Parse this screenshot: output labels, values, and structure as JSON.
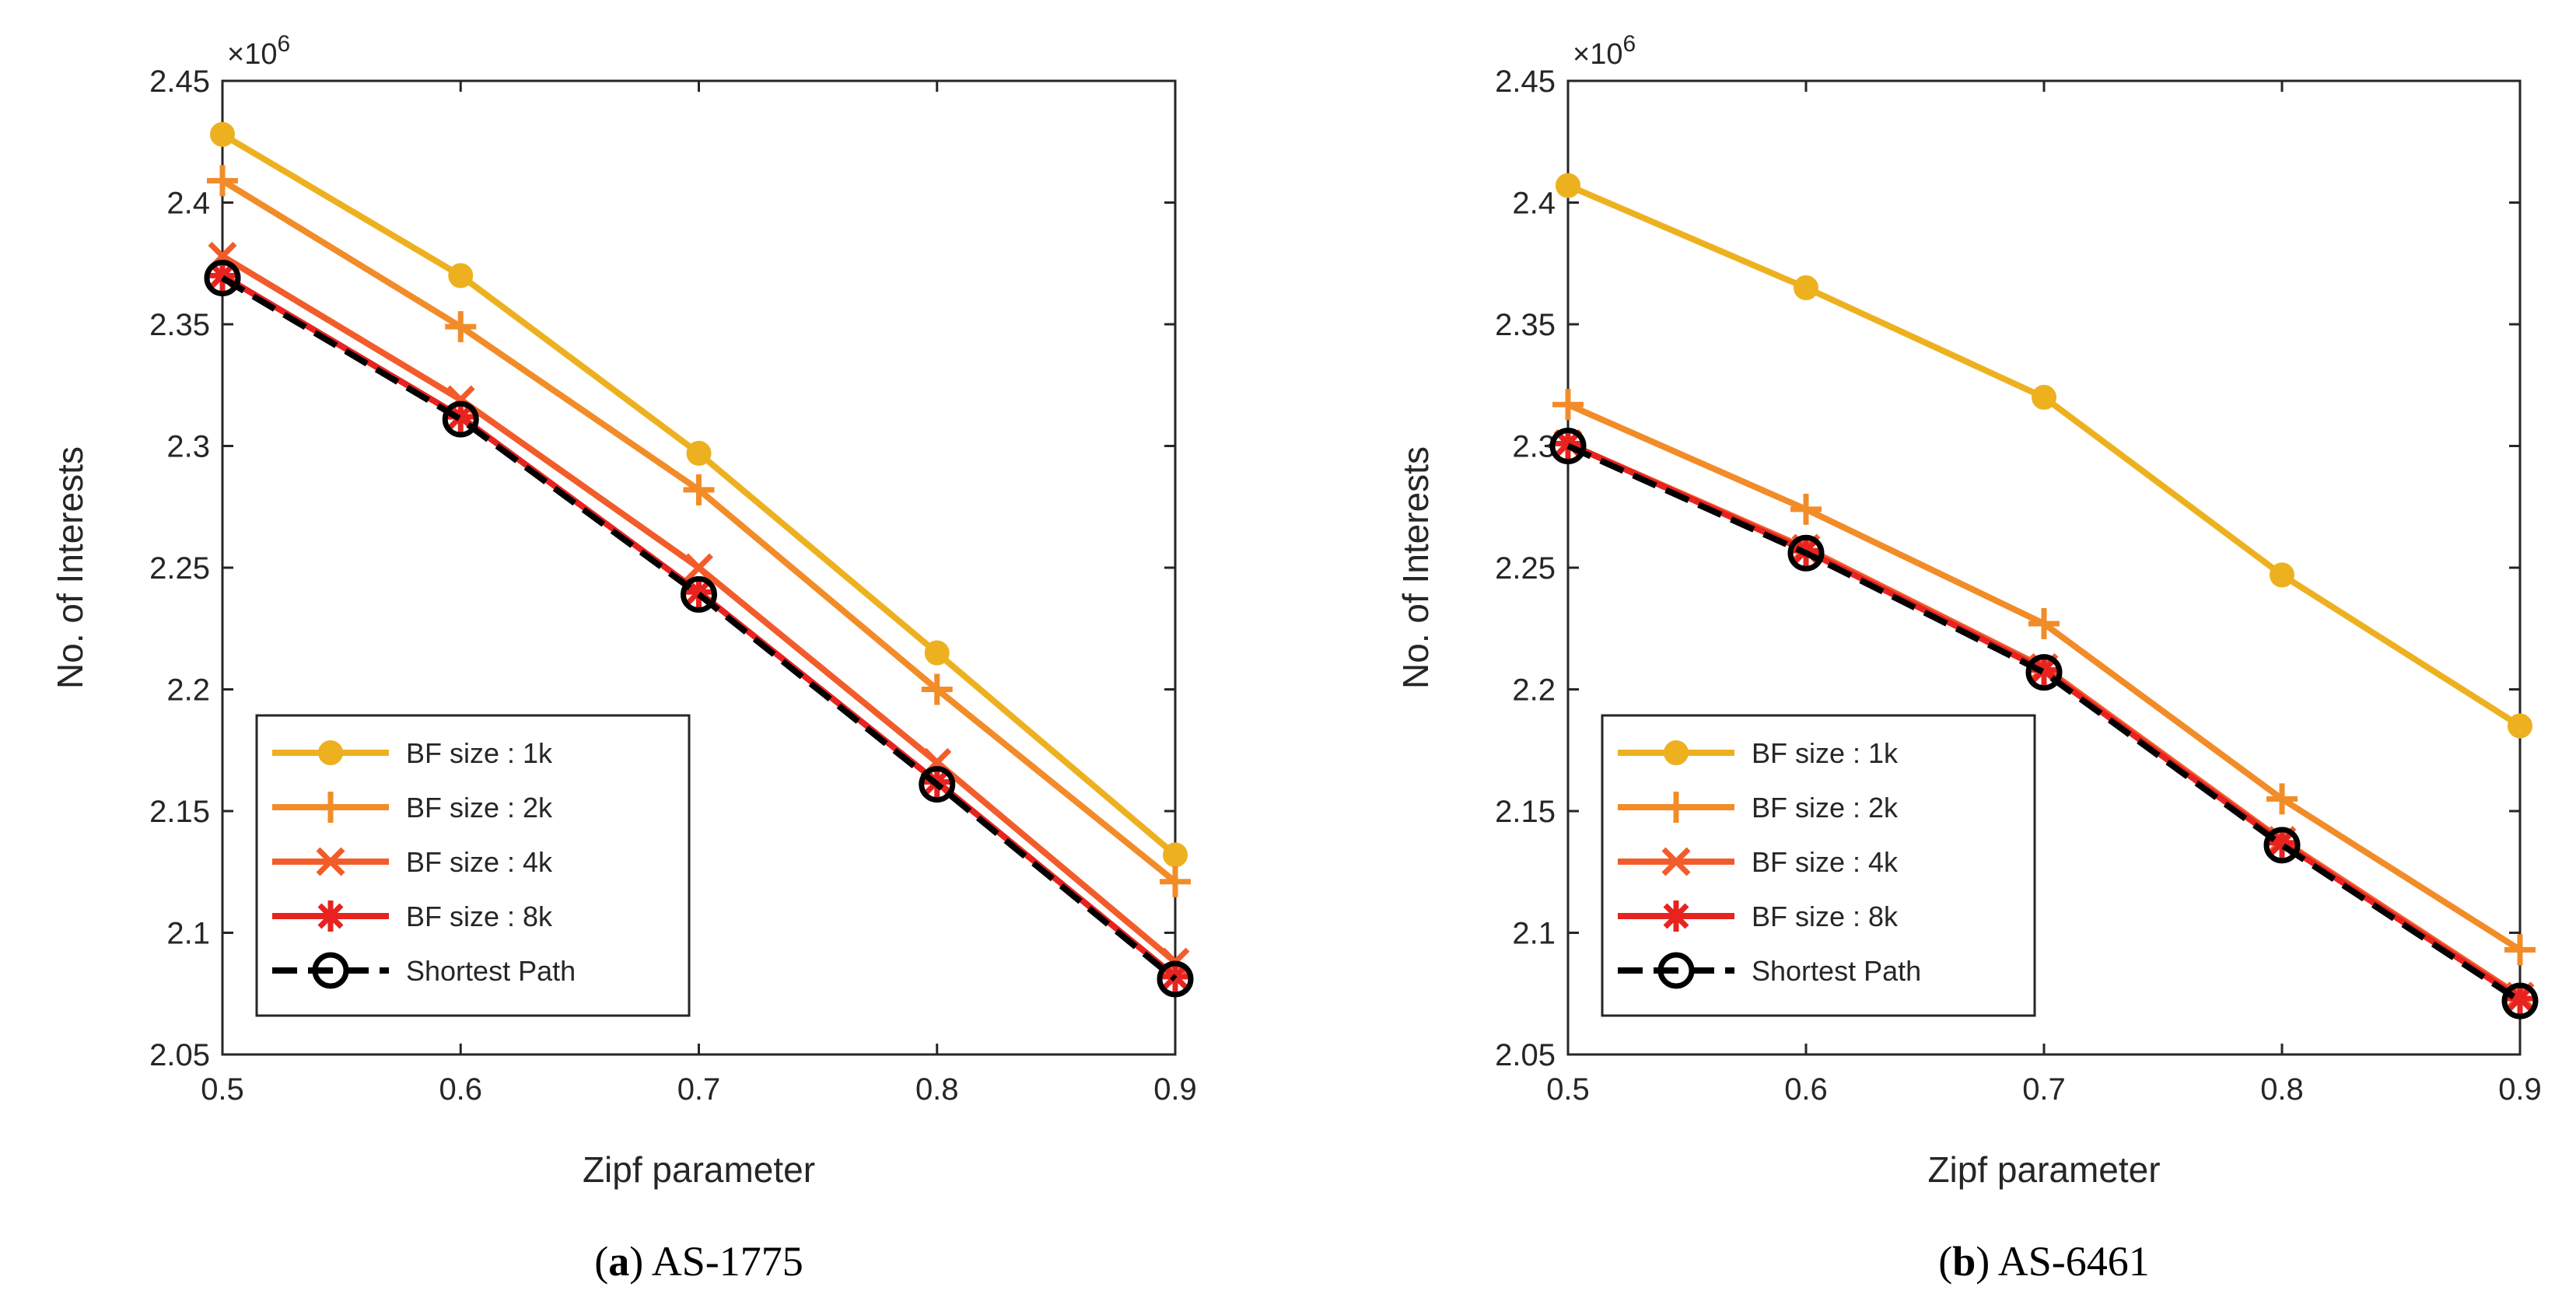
{
  "chart_data": [
    {
      "type": "line",
      "caption_letter": "a",
      "caption_text": "AS-1775",
      "xlabel": "Zipf parameter",
      "ylabel": "No. of Interests",
      "y_multiplier": "×10",
      "y_multiplier_exp": "6",
      "x": [
        0.5,
        0.6,
        0.7,
        0.8,
        0.9
      ],
      "xlim": [
        0.5,
        0.9
      ],
      "ylim": [
        2.05,
        2.45
      ],
      "xticks": [
        "0.5",
        "0.6",
        "0.7",
        "0.8",
        "0.9"
      ],
      "yticks": [
        "2.05",
        "2.1",
        "2.15",
        "2.2",
        "2.25",
        "2.3",
        "2.35",
        "2.4",
        "2.45"
      ],
      "legend_position": "bottom-left",
      "series": [
        {
          "name": "BF size : 1k",
          "color": "#EDB120",
          "marker": "circle",
          "dash": false,
          "values": [
            2.428,
            2.37,
            2.297,
            2.215,
            2.132
          ]
        },
        {
          "name": "BF size : 2k",
          "color": "#F28C28",
          "marker": "plus",
          "dash": false,
          "values": [
            2.409,
            2.349,
            2.282,
            2.2,
            2.121
          ]
        },
        {
          "name": "BF size : 4k",
          "color": "#F25C2B",
          "marker": "x",
          "dash": false,
          "values": [
            2.378,
            2.319,
            2.25,
            2.17,
            2.088
          ]
        },
        {
          "name": "BF size : 8k",
          "color": "#E8231F",
          "marker": "star",
          "dash": false,
          "values": [
            2.37,
            2.312,
            2.24,
            2.162,
            2.082
          ]
        },
        {
          "name": "Shortest Path",
          "color": "#000000",
          "marker": "circle-open",
          "dash": true,
          "values": [
            2.369,
            2.311,
            2.239,
            2.161,
            2.081
          ]
        }
      ]
    },
    {
      "type": "line",
      "caption_letter": "b",
      "caption_text": "AS-6461",
      "xlabel": "Zipf parameter",
      "ylabel": "No. of Interests",
      "y_multiplier": "×10",
      "y_multiplier_exp": "6",
      "x": [
        0.5,
        0.6,
        0.7,
        0.8,
        0.9
      ],
      "xlim": [
        0.5,
        0.9
      ],
      "ylim": [
        2.05,
        2.45
      ],
      "xticks": [
        "0.5",
        "0.6",
        "0.7",
        "0.8",
        "0.9"
      ],
      "yticks": [
        "2.05",
        "2.1",
        "2.15",
        "2.2",
        "2.25",
        "2.3",
        "2.35",
        "2.4",
        "2.45"
      ],
      "legend_position": "bottom-left",
      "series": [
        {
          "name": "BF size : 1k",
          "color": "#EDB120",
          "marker": "circle",
          "dash": false,
          "values": [
            2.407,
            2.365,
            2.32,
            2.247,
            2.185
          ]
        },
        {
          "name": "BF size : 2k",
          "color": "#F28C28",
          "marker": "plus",
          "dash": false,
          "values": [
            2.317,
            2.274,
            2.227,
            2.155,
            2.093
          ]
        },
        {
          "name": "BF size : 4k",
          "color": "#F25C2B",
          "marker": "x",
          "dash": false,
          "values": [
            2.301,
            2.258,
            2.209,
            2.138,
            2.074
          ]
        },
        {
          "name": "BF size : 8k",
          "color": "#E8231F",
          "marker": "star",
          "dash": false,
          "values": [
            2.301,
            2.257,
            2.208,
            2.137,
            2.073
          ]
        },
        {
          "name": "Shortest Path",
          "color": "#000000",
          "marker": "circle-open",
          "dash": true,
          "values": [
            2.3,
            2.256,
            2.207,
            2.136,
            2.072
          ]
        }
      ]
    }
  ]
}
